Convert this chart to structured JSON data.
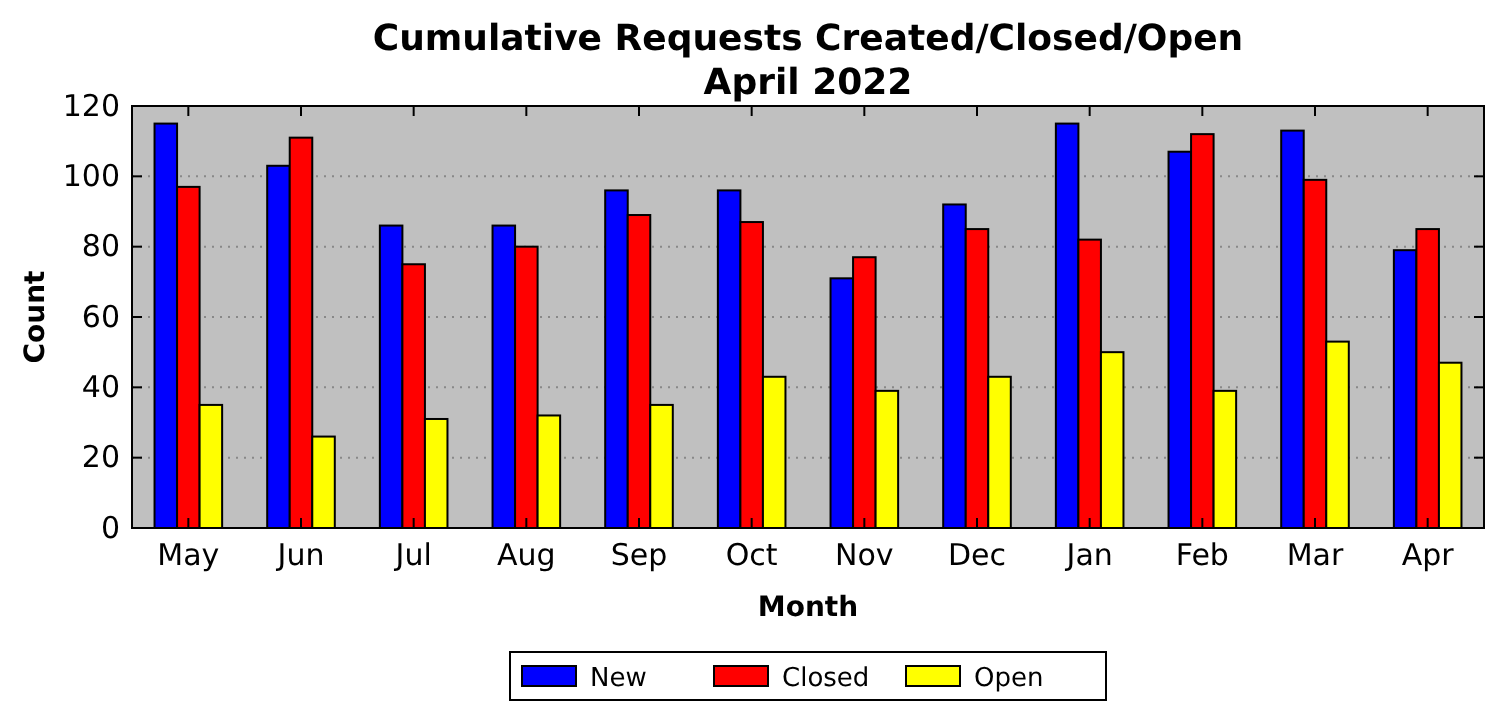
{
  "chart_data": {
    "type": "bar",
    "title": "Cumulative Requests Created/Closed/Open\nApril 2022",
    "xlabel": "Month",
    "ylabel": "Count",
    "categories": [
      "May",
      "Jun",
      "Jul",
      "Aug",
      "Sep",
      "Oct",
      "Nov",
      "Dec",
      "Jan",
      "Feb",
      "Mar",
      "Apr"
    ],
    "series": [
      {
        "name": "New",
        "color": "#0000ff",
        "values": [
          115,
          103,
          86,
          86,
          96,
          96,
          71,
          92,
          115,
          107,
          113,
          79
        ]
      },
      {
        "name": "Closed",
        "color": "#ff0000",
        "values": [
          97,
          111,
          75,
          80,
          89,
          87,
          77,
          85,
          82,
          112,
          99,
          85
        ]
      },
      {
        "name": "Open",
        "color": "#ffff00",
        "values": [
          35,
          26,
          31,
          32,
          35,
          43,
          39,
          43,
          50,
          39,
          53,
          47
        ]
      }
    ],
    "ylim": [
      0,
      120
    ],
    "yticks": [
      0,
      20,
      40,
      60,
      80,
      100,
      120
    ],
    "grid": "y",
    "legend": "bottom"
  }
}
